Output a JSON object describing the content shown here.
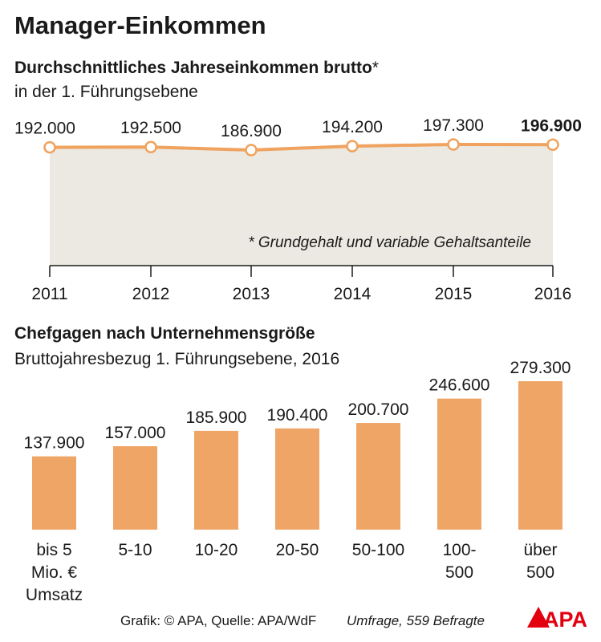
{
  "title": "Manager-Einkommen",
  "chart_data": [
    {
      "type": "line",
      "title": "Durchschnittliches Jahreseinkommen brutto",
      "title_marker": "*",
      "subtitle": "in der 1. Führungsebene",
      "x": [
        "2011",
        "2012",
        "2013",
        "2014",
        "2015",
        "2016"
      ],
      "values": [
        192000,
        192500,
        186900,
        194200,
        197300,
        196900
      ],
      "labels": [
        "192.000",
        "192.500",
        "186.900",
        "194.200",
        "197.300",
        "196.900"
      ],
      "highlight_last": true,
      "footnote": "* Grundgehalt und variable Gehaltsanteile",
      "line_color": "#f0a25f",
      "fill_color": "#ece9e2"
    },
    {
      "type": "bar",
      "title": "Chefgagen nach Unternehmensgröße",
      "subtitle": "Bruttojahresbezug 1. Führungsebene, 2016",
      "categories": [
        [
          "bis 5",
          "Mio. €",
          "Umsatz"
        ],
        [
          "5-10"
        ],
        [
          "10-20"
        ],
        [
          "20-50"
        ],
        [
          "50-100"
        ],
        [
          "100-",
          "500"
        ],
        [
          "über",
          "500"
        ]
      ],
      "values": [
        137900,
        157000,
        185900,
        190400,
        200700,
        246600,
        279300
      ],
      "labels": [
        "137.900",
        "157.000",
        "185.900",
        "190.400",
        "200.700",
        "246.600",
        "279.300"
      ],
      "bar_color": "#eea565"
    }
  ],
  "footer": {
    "source": "Grafik: © APA, Quelle: APA/WdF",
    "survey": "Umfrage, 559 Befragte",
    "logo_text": "APA",
    "logo_color": "#e3000f"
  }
}
